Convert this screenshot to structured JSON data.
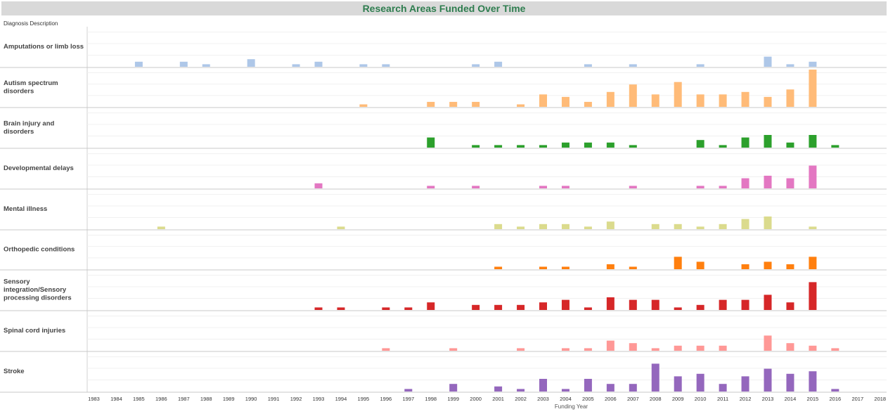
{
  "chart_data": {
    "type": "bar",
    "title": "Research Areas Funded Over Time",
    "row_header": "Diagnosis Description",
    "xlabel": "Funding Year",
    "x": [
      1983,
      1984,
      1985,
      1986,
      1987,
      1988,
      1989,
      1990,
      1991,
      1992,
      1993,
      1994,
      1995,
      1996,
      1997,
      1998,
      1999,
      2000,
      2001,
      2002,
      2003,
      2004,
      2005,
      2006,
      2007,
      2008,
      2009,
      2010,
      2011,
      2012,
      2013,
      2014,
      2015,
      2016,
      2017,
      2018
    ],
    "series": [
      {
        "name": "Amputations or limb loss",
        "label_lines": [
          "Amputations or limb loss"
        ],
        "color": "#aec7e8",
        "values": [
          0,
          0,
          2,
          0,
          2,
          1,
          0,
          3,
          0,
          1,
          2,
          0,
          1,
          1,
          0,
          0,
          0,
          1,
          2,
          0,
          0,
          0,
          1,
          0,
          1,
          0,
          0,
          1,
          0,
          0,
          4,
          1,
          2,
          0,
          0,
          0
        ]
      },
      {
        "name": "Autism spectrum disorders",
        "label_lines": [
          "Autism spectrum",
          "disorders"
        ],
        "color": "#ffbb78",
        "values": [
          0,
          0,
          0,
          0,
          0,
          0,
          0,
          0,
          0,
          0,
          0,
          0,
          1,
          0,
          0,
          2,
          2,
          2,
          0,
          1,
          5,
          4,
          2,
          6,
          9,
          5,
          10,
          5,
          5,
          6,
          4,
          7,
          15,
          0,
          0,
          0
        ]
      },
      {
        "name": "Brain injury and disorders",
        "label_lines": [
          "Brain injury and",
          "disorders"
        ],
        "color": "#2ca02c",
        "values": [
          0,
          0,
          0,
          0,
          0,
          0,
          0,
          0,
          0,
          0,
          0,
          0,
          0,
          0,
          0,
          4,
          0,
          1,
          1,
          1,
          1,
          2,
          2,
          2,
          1,
          0,
          0,
          3,
          1,
          4,
          5,
          2,
          5,
          1,
          0,
          0
        ]
      },
      {
        "name": "Developmental delays",
        "label_lines": [
          "Developmental delays"
        ],
        "color": "#e377c2",
        "values": [
          0,
          0,
          0,
          0,
          0,
          0,
          0,
          0,
          0,
          0,
          2,
          0,
          0,
          0,
          0,
          1,
          0,
          1,
          0,
          0,
          1,
          1,
          0,
          0,
          1,
          0,
          0,
          1,
          1,
          4,
          5,
          4,
          9,
          0,
          0,
          0
        ]
      },
      {
        "name": "Mental illness",
        "label_lines": [
          "Mental illness"
        ],
        "color": "#dbdb8d",
        "values": [
          0,
          0,
          0,
          1,
          0,
          0,
          0,
          0,
          0,
          0,
          0,
          1,
          0,
          0,
          0,
          0,
          0,
          0,
          2,
          1,
          2,
          2,
          1,
          3,
          0,
          2,
          2,
          1,
          2,
          4,
          5,
          0,
          1,
          0,
          0,
          0
        ]
      },
      {
        "name": "Orthopedic conditions",
        "label_lines": [
          "Orthopedic conditions"
        ],
        "color": "#ff7f0e",
        "values": [
          0,
          0,
          0,
          0,
          0,
          0,
          0,
          0,
          0,
          0,
          0,
          0,
          0,
          0,
          0,
          0,
          0,
          0,
          1,
          0,
          1,
          1,
          0,
          2,
          1,
          0,
          5,
          3,
          0,
          2,
          3,
          2,
          5,
          0,
          0,
          0
        ]
      },
      {
        "name": "Sensory integration/Sensory processing disorders",
        "label_lines": [
          "Sensory",
          "integration/Sensory",
          "processing disorders"
        ],
        "color": "#d62728",
        "values": [
          0,
          0,
          0,
          0,
          0,
          0,
          0,
          0,
          0,
          0,
          1,
          1,
          0,
          1,
          1,
          3,
          0,
          2,
          2,
          2,
          3,
          4,
          1,
          5,
          4,
          4,
          1,
          2,
          4,
          4,
          6,
          3,
          11,
          0,
          0,
          0
        ]
      },
      {
        "name": "Spinal cord injuries",
        "label_lines": [
          "Spinal cord injuries"
        ],
        "color": "#ff9896",
        "values": [
          0,
          0,
          0,
          0,
          0,
          0,
          0,
          0,
          0,
          0,
          0,
          0,
          0,
          1,
          0,
          0,
          1,
          0,
          0,
          1,
          0,
          1,
          1,
          4,
          3,
          1,
          2,
          2,
          2,
          0,
          6,
          3,
          2,
          1,
          0,
          0
        ]
      },
      {
        "name": "Stroke",
        "label_lines": [
          "Stroke"
        ],
        "color": "#9467bd",
        "values": [
          0,
          0,
          0,
          0,
          0,
          0,
          0,
          0,
          0,
          0,
          0,
          0,
          0,
          0,
          1,
          0,
          3,
          0,
          2,
          1,
          5,
          1,
          5,
          3,
          3,
          11,
          6,
          7,
          3,
          6,
          9,
          7,
          8,
          1,
          0,
          0
        ]
      }
    ],
    "row_max": 15,
    "grid": true,
    "legend": "none"
  }
}
